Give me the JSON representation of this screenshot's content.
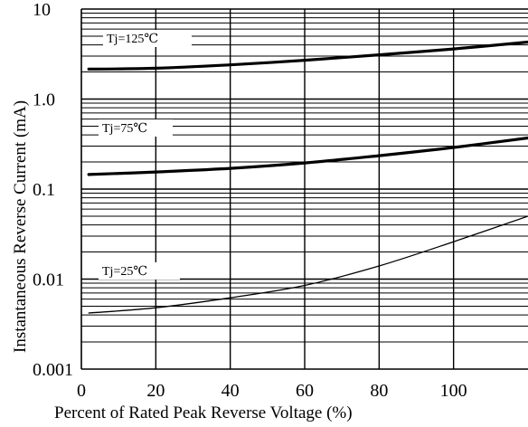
{
  "chart_data": {
    "type": "line",
    "title": "",
    "xlabel": "Percent of Rated Peak Reverse Voltage (%)",
    "ylabel": "Instantaneous Reverse Current (mA)",
    "x_scale": "linear",
    "y_scale": "log",
    "xlim": [
      0,
      120
    ],
    "ylim": [
      0.001,
      10
    ],
    "x_ticks": [
      "0",
      "20",
      "40",
      "60",
      "80",
      "100"
    ],
    "x_tick_values": [
      0,
      20,
      40,
      60,
      80,
      100
    ],
    "y_ticks": [
      "0.001",
      "0.01",
      "0.1",
      "1.0",
      "10"
    ],
    "y_tick_values": [
      0.001,
      0.01,
      0.1,
      1,
      10
    ],
    "grid": true,
    "series": [
      {
        "name": "Tj=125℃",
        "x": [
          2,
          20,
          40,
          60,
          80,
          100,
          120
        ],
        "values": [
          2.15,
          2.2,
          2.4,
          2.7,
          3.1,
          3.6,
          4.3
        ],
        "line": "bold"
      },
      {
        "name": "Tj=75℃",
        "x": [
          2,
          20,
          40,
          60,
          80,
          100,
          120
        ],
        "values": [
          0.145,
          0.155,
          0.17,
          0.195,
          0.235,
          0.29,
          0.37
        ],
        "line": "bold"
      },
      {
        "name": "Tj=25℃",
        "x": [
          2,
          20,
          40,
          60,
          80,
          100,
          120
        ],
        "values": [
          0.0042,
          0.0048,
          0.0062,
          0.0085,
          0.014,
          0.026,
          0.05
        ],
        "line": "thin"
      }
    ]
  }
}
